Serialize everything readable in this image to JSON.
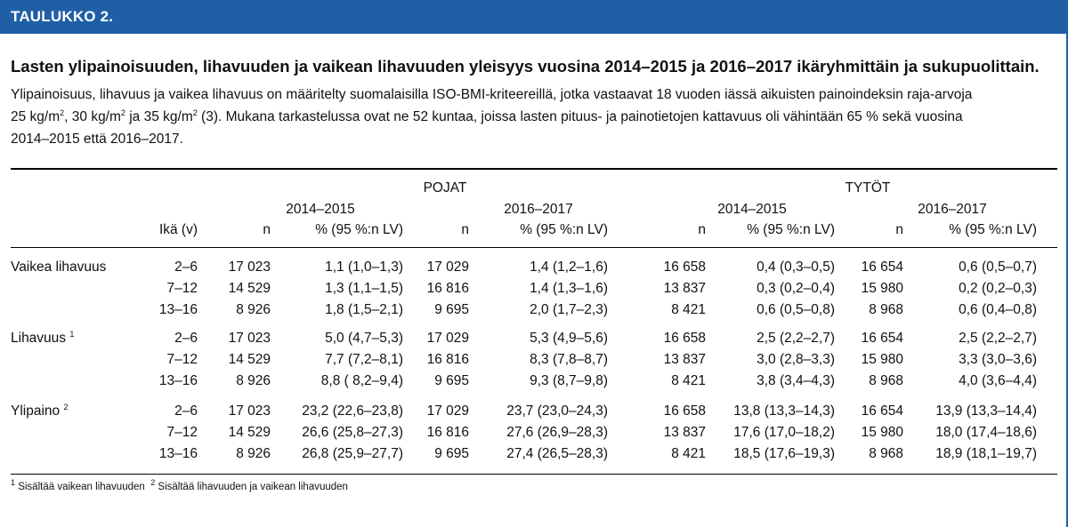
{
  "header": {
    "label": "TAULUKKO 2."
  },
  "title": "Lasten ylipainoisuuden, lihavuuden ja vaikean lihavuuden yleisyys vuosina 2014–2015 ja 2016–2017 ikäryhmittäin ja sukupuolittain.",
  "description": {
    "line1": "Ylipainoisuus, lihavuus ja vaikea lihavuus on määritelty suomalaisilla ISO-BMI-kriteereillä, jotka vastaavat 18 vuoden iässä aikuisten painoindeksin raja-arvoja",
    "line2_a": "25 kg/m",
    "line2_b": ", 30 kg/m",
    "line2_c": " ja 35 kg/m",
    "line2_d": " (3). Mukana tarkastelussa ovat ne 52 kuntaa, joissa lasten pituus- ja painotietojen kattavuus oli vähintään 65 % sekä vuosina",
    "line3": "2014–2015 että 2016–2017.",
    "sup2": "2"
  },
  "table": {
    "group_boys": "POJAT",
    "group_girls": "TYTÖT",
    "period1": "2014–2015",
    "period2": "2016–2017",
    "col_age": "Ikä (v)",
    "col_n": "n",
    "col_pct": "% (95 %:n LV)",
    "sections": [
      {
        "label": "Vaikea lihavuus",
        "sup": "",
        "rows": [
          [
            "2–6",
            "17 023",
            "1,1 (1,0–1,3)",
            "17 029",
            "1,4 (1,2–1,6)",
            "16 658",
            "0,4 (0,3–0,5)",
            "16 654",
            "0,6 (0,5–0,7)"
          ],
          [
            "7–12",
            "14 529",
            "1,3 (1,1–1,5)",
            "16 816",
            "1,4 (1,3–1,6)",
            "13 837",
            "0,3 (0,2–0,4)",
            "15 980",
            "0,2 (0,2–0,3)"
          ],
          [
            "13–16",
            "8 926",
            "1,8 (1,5–2,1)",
            "9 695",
            "2,0 (1,7–2,3)",
            "8 421",
            "0,6 (0,5–0,8)",
            "8 968",
            "0,6 (0,4–0,8)"
          ]
        ]
      },
      {
        "label": "Lihavuus",
        "sup": "1",
        "rows": [
          [
            "2–6",
            "17 023",
            "5,0 (4,7–5,3)",
            "17 029",
            "5,3 (4,9–5,6)",
            "16 658",
            "2,5 (2,2–2,7)",
            "16 654",
            "2,5 (2,2–2,7)"
          ],
          [
            "7–12",
            "14 529",
            "7,7 (7,2–8,1)",
            "16 816",
            "8,3 (7,8–8,7)",
            "13 837",
            "3,0 (2,8–3,3)",
            "15 980",
            "3,3 (3,0–3,6)"
          ],
          [
            "13–16",
            "8 926",
            "8,8 ( 8,2–9,4)",
            "9 695",
            "9,3 (8,7–9,8)",
            "8 421",
            "3,8 (3,4–4,3)",
            "8 968",
            "4,0 (3,6–4,4)"
          ]
        ]
      },
      {
        "label": "Ylipaino",
        "sup": "2",
        "rows": [
          [
            "2–6",
            "17 023",
            "23,2 (22,6–23,8)",
            "17 029",
            "23,7 (23,0–24,3)",
            "16 658",
            "13,8 (13,3–14,3)",
            "16 654",
            "13,9 (13,3–14,4)"
          ],
          [
            "7–12",
            "14 529",
            "26,6 (25,8–27,3)",
            "16 816",
            "27,6 (26,9–28,3)",
            "13 837",
            "17,6 (17,0–18,2)",
            "15 980",
            "18,0 (17,4–18,6)"
          ],
          [
            "13–16",
            "8 926",
            "26,8 (25,9–27,7)",
            "9 695",
            "27,4 (26,5–28,3)",
            "8 421",
            "18,5 (17,6–19,3)",
            "8 968",
            "18,9 (18,1–19,7)"
          ]
        ]
      }
    ]
  },
  "footnote": {
    "sup1": "1",
    "text1": " Sisältää vaikean lihavuuden",
    "sup2": "2",
    "text2": " Sisältää lihavuuden ja vaikean lihavuuden"
  }
}
